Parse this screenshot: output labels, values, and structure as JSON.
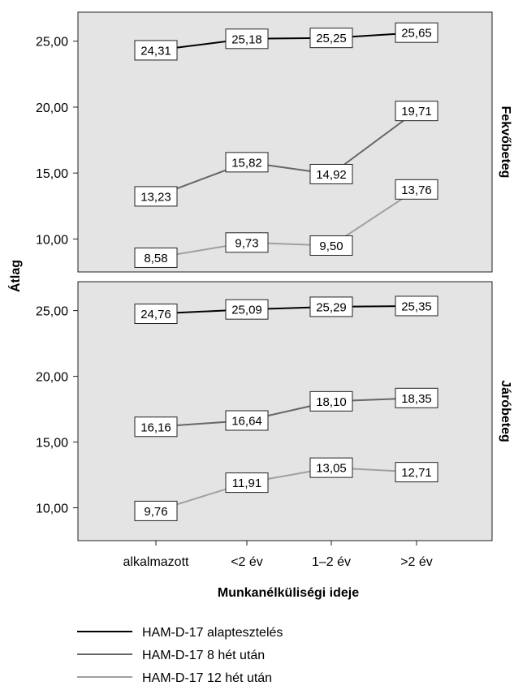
{
  "chart_data": {
    "type": "line",
    "xlabel": "Munkanélküliségi ideje",
    "ylabel": "Átlag",
    "categories": [
      "alkalmazott",
      "<2 év",
      "1–2 év",
      ">2 év"
    ],
    "yticks": [
      "10,00",
      "15,00",
      "20,00",
      "25,00"
    ],
    "ylim": [
      7.5,
      27.2
    ],
    "grid": false,
    "legend_position": "bottom",
    "panels": [
      {
        "label": "Fekvőbeteg",
        "series": [
          {
            "name": "HAM-D-17 alaptesztelés",
            "color": "#000000",
            "values": [
              24.31,
              25.18,
              25.25,
              25.65
            ],
            "labels": [
              "24,31",
              "25,18",
              "25,25",
              "25,65"
            ]
          },
          {
            "name": "HAM-D-17 8 hét után",
            "color": "#666666",
            "values": [
              13.23,
              15.82,
              14.92,
              19.71
            ],
            "labels": [
              "13,23",
              "15,82",
              "14,92",
              "19,71"
            ]
          },
          {
            "name": "HAM-D-17 12 hét után",
            "color": "#a0a0a0",
            "values": [
              8.58,
              9.73,
              9.5,
              13.76
            ],
            "labels": [
              "8,58",
              "9,73",
              "9,50",
              "13,76"
            ]
          }
        ]
      },
      {
        "label": "Járóbeteg",
        "series": [
          {
            "name": "HAM-D-17 alaptesztelés",
            "color": "#000000",
            "values": [
              24.76,
              25.09,
              25.29,
              25.35
            ],
            "labels": [
              "24,76",
              "25,09",
              "25,29",
              "25,35"
            ]
          },
          {
            "name": "HAM-D-17 8 hét után",
            "color": "#666666",
            "values": [
              16.16,
              16.64,
              18.1,
              18.35
            ],
            "labels": [
              "16,16",
              "16,64",
              "18,10",
              "18,35"
            ]
          },
          {
            "name": "HAM-D-17 12 hét után",
            "color": "#a0a0a0",
            "values": [
              9.76,
              11.91,
              13.05,
              12.71
            ],
            "labels": [
              "9,76",
              "11,91",
              "13,05",
              "12,71"
            ]
          }
        ]
      }
    ]
  }
}
